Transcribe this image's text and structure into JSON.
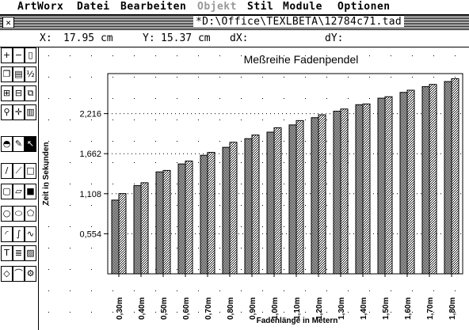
{
  "menu": {
    "items": [
      {
        "label": "ArtWorx",
        "disabled": false
      },
      {
        "label": "Datei",
        "disabled": false
      },
      {
        "label": "Bearbeiten",
        "disabled": false
      },
      {
        "label": "Objekt",
        "disabled": true
      },
      {
        "label": "Stil",
        "disabled": false
      },
      {
        "label": "Module",
        "disabled": false
      },
      {
        "label": "Optionen",
        "disabled": false
      }
    ]
  },
  "window": {
    "title": "*D:\\Office\\TEXLBETA\\12784c71.tad",
    "close_glyph": "✕"
  },
  "coords": {
    "x_label": "X:",
    "x_value": "17.95 cm",
    "y_label": "Y:",
    "y_value": "15.37 cm",
    "dx_label": "dX:",
    "dy_label": "dY:"
  },
  "tools": [
    {
      "name": "plus-tool-icon",
      "glyph": "+"
    },
    {
      "name": "minus-tool-icon",
      "glyph": "−"
    },
    {
      "name": "page-tool-icon",
      "glyph": "▯"
    },
    {
      "name": "copy-tool-icon",
      "glyph": "❐"
    },
    {
      "name": "paste-tool-icon",
      "glyph": "▤"
    },
    {
      "name": "fraction-tool-icon",
      "glyph": "½"
    },
    {
      "name": "group-tool-icon",
      "glyph": "⊞"
    },
    {
      "name": "ungroup-tool-icon",
      "glyph": "⊟"
    },
    {
      "name": "layer-tool-icon",
      "glyph": "⧉"
    },
    {
      "name": "pin-tool-icon",
      "glyph": "⚲"
    },
    {
      "name": "move-tool-icon",
      "glyph": "✛"
    },
    {
      "name": "trash-tool-icon",
      "glyph": "▥"
    },
    {
      "name": "fill-tool-icon",
      "glyph": "◓"
    },
    {
      "name": "pen-tool-icon",
      "glyph": "✎"
    },
    {
      "name": "pointer-tool-icon",
      "glyph": "↖"
    },
    {
      "name": "line-tool-icon",
      "glyph": "/"
    },
    {
      "name": "polyline-tool-icon",
      "glyph": "⟋"
    },
    {
      "name": "rect-tool-icon",
      "glyph": "□"
    },
    {
      "name": "roundrect-tool-icon",
      "glyph": "▢"
    },
    {
      "name": "parallelogram-tool-icon",
      "glyph": "▱"
    },
    {
      "name": "square-tool-icon",
      "glyph": "■"
    },
    {
      "name": "circle-tool-icon",
      "glyph": "○"
    },
    {
      "name": "ellipse-tool-icon",
      "glyph": "⬭"
    },
    {
      "name": "polygon-tool-icon",
      "glyph": "⬠"
    },
    {
      "name": "arc-tool-icon",
      "glyph": "◜"
    },
    {
      "name": "curve-tool-icon",
      "glyph": "∫"
    },
    {
      "name": "freehand-tool-icon",
      "glyph": "∿"
    },
    {
      "name": "text-tool-icon",
      "glyph": "T"
    },
    {
      "name": "textframe-tool-icon",
      "glyph": "≣"
    },
    {
      "name": "hatch-tool-icon",
      "glyph": "▨"
    },
    {
      "name": "diamond-tool-icon",
      "glyph": "◇"
    },
    {
      "name": "bezier-tool-icon",
      "glyph": "⌒"
    },
    {
      "name": "stamp-tool-icon",
      "glyph": "⚙"
    }
  ],
  "chart_data": {
    "type": "bar",
    "title": "Meßreihe Fadenpendel",
    "xlabel": "Fadenlänge in Metern",
    "ylabel": "Zeit in Sekunden",
    "categories": [
      "0,30m",
      "0,40m",
      "0,50m",
      "0,60m",
      "0,70m",
      "0,80m",
      "0,90m",
      "1,00m",
      "1,10m",
      "1,20m",
      "1,30m",
      "1,40m",
      "1,50m",
      "1,60m",
      "1,70m",
      "1,80m"
    ],
    "series": [
      {
        "values": [
          1.02,
          1.22,
          1.41,
          1.52,
          1.64,
          1.75,
          1.87,
          1.96,
          2.06,
          2.16,
          2.25,
          2.34,
          2.43,
          2.51,
          2.59,
          2.66
        ]
      },
      {
        "values": [
          1.11,
          1.26,
          1.43,
          1.56,
          1.68,
          1.82,
          1.92,
          2.02,
          2.12,
          2.2,
          2.28,
          2.35,
          2.45,
          2.54,
          2.62,
          2.7
        ]
      }
    ],
    "yticks": [
      0.554,
      1.108,
      1.662,
      2.216
    ],
    "ytick_labels": [
      "0,554",
      "1,108",
      "1,662",
      "2,216"
    ],
    "ylim": [
      0,
      2.77
    ],
    "grid": "dotted"
  }
}
